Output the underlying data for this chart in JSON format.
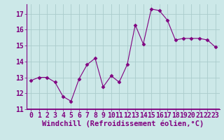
{
  "x": [
    0,
    1,
    2,
    3,
    4,
    5,
    6,
    7,
    8,
    9,
    10,
    11,
    12,
    13,
    14,
    15,
    16,
    17,
    18,
    19,
    20,
    21,
    22,
    23
  ],
  "y": [
    12.8,
    13.0,
    13.0,
    12.7,
    11.8,
    11.5,
    12.9,
    13.8,
    14.2,
    12.4,
    13.1,
    12.7,
    13.8,
    16.3,
    15.1,
    17.3,
    17.2,
    16.6,
    15.35,
    15.45,
    15.45,
    15.45,
    15.35,
    14.9
  ],
  "line_color": "#800080",
  "marker": "D",
  "marker_size": 2.5,
  "bg_color": "#cce8e8",
  "grid_color": "#aacccc",
  "xlabel": "Windchill (Refroidissement éolien,°C)",
  "xlabel_fontsize": 7.5,
  "tick_fontsize": 7,
  "ylim": [
    11,
    17.6
  ],
  "xlim": [
    -0.5,
    23.5
  ],
  "yticks": [
    11,
    12,
    13,
    14,
    15,
    16,
    17
  ],
  "xticks": [
    0,
    1,
    2,
    3,
    4,
    5,
    6,
    7,
    8,
    9,
    10,
    11,
    12,
    13,
    14,
    15,
    16,
    17,
    18,
    19,
    20,
    21,
    22,
    23
  ]
}
